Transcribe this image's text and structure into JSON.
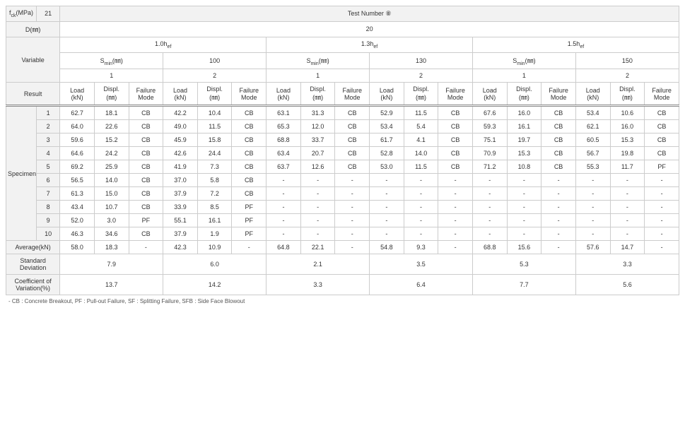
{
  "colors": {
    "header_bg": "#f2f2f2",
    "border": "#cccccc",
    "text": "#333333",
    "background": "#ffffff"
  },
  "typography": {
    "base_fontsize_pt": 9,
    "footnote_fontsize_pt": 8,
    "sub_fontsize_pt": 7
  },
  "hdr": {
    "fck_label": "f",
    "fck_sub": "ck",
    "fck_unit": "(MPa)",
    "fck_val": "21",
    "test_number": "Test Number ⑧",
    "d_label": "D(㎜)",
    "d_val": "20",
    "variable": "Variable",
    "hef_10": "1.0h",
    "hef_13": "1.3h",
    "hef_15": "1.5h",
    "hef_sub": "ef",
    "smin": "S",
    "smin_sub": "min",
    "smin_unit": "(㎜)",
    "c100": "100",
    "c130": "130",
    "c150": "150",
    "one": "1",
    "two": "2",
    "result": "Result",
    "load": "Load",
    "load_unit": "(kN)",
    "displ": "Displ.",
    "displ_unit": "(㎜)",
    "failure": "Failure",
    "failure2": "Mode",
    "specimen": "Specimen",
    "average": "Average(kN)",
    "stddev": "Standard",
    "stddev2": "Deviation",
    "cov": "Coefficient of",
    "cov2": "Variation(%)"
  },
  "rows": [
    {
      "n": "1",
      "c": [
        "62.7",
        "18.1",
        "CB",
        "42.2",
        "10.4",
        "CB",
        "63.1",
        "31.3",
        "CB",
        "52.9",
        "11.5",
        "CB",
        "67.6",
        "16.0",
        "CB",
        "53.4",
        "10.6",
        "CB"
      ]
    },
    {
      "n": "2",
      "c": [
        "64.0",
        "22.6",
        "CB",
        "49.0",
        "11.5",
        "CB",
        "65.3",
        "12.0",
        "CB",
        "53.4",
        "5.4",
        "CB",
        "59.3",
        "16.1",
        "CB",
        "62.1",
        "16.0",
        "CB"
      ]
    },
    {
      "n": "3",
      "c": [
        "59.6",
        "15.2",
        "CB",
        "45.9",
        "15.8",
        "CB",
        "68.8",
        "33.7",
        "CB",
        "61.7",
        "4.1",
        "CB",
        "75.1",
        "19.7",
        "CB",
        "60.5",
        "15.3",
        "CB"
      ]
    },
    {
      "n": "4",
      "c": [
        "64.6",
        "24.2",
        "CB",
        "42.6",
        "24.4",
        "CB",
        "63.4",
        "20.7",
        "CB",
        "52.8",
        "14.0",
        "CB",
        "70.9",
        "15.3",
        "CB",
        "56.7",
        "19.8",
        "CB"
      ]
    },
    {
      "n": "5",
      "c": [
        "69.2",
        "25.9",
        "CB",
        "41.9",
        "7.3",
        "CB",
        "63.7",
        "12.6",
        "CB",
        "53.0",
        "11.5",
        "CB",
        "71.2",
        "10.8",
        "CB",
        "55.3",
        "11.7",
        "PF"
      ]
    },
    {
      "n": "6",
      "c": [
        "56.5",
        "14.0",
        "CB",
        "37.0",
        "5.8",
        "CB",
        "-",
        "-",
        "-",
        "-",
        "-",
        "-",
        "-",
        "-",
        "-",
        "-",
        "-",
        "-"
      ]
    },
    {
      "n": "7",
      "c": [
        "61.3",
        "15.0",
        "CB",
        "37.9",
        "7.2",
        "CB",
        "-",
        "-",
        "-",
        "-",
        "-",
        "-",
        "-",
        "-",
        "-",
        "-",
        "-",
        "-"
      ]
    },
    {
      "n": "8",
      "c": [
        "43.4",
        "10.7",
        "CB",
        "33.9",
        "8.5",
        "PF",
        "-",
        "-",
        "-",
        "-",
        "-",
        "-",
        "-",
        "-",
        "-",
        "-",
        "-",
        "-"
      ]
    },
    {
      "n": "9",
      "c": [
        "52.0",
        "3.0",
        "PF",
        "55.1",
        "16.1",
        "PF",
        "-",
        "-",
        "-",
        "-",
        "-",
        "-",
        "-",
        "-",
        "-",
        "-",
        "-",
        "-"
      ]
    },
    {
      "n": "10",
      "c": [
        "46.3",
        "34.6",
        "CB",
        "37.9",
        "1.9",
        "PF",
        "-",
        "-",
        "-",
        "-",
        "-",
        "-",
        "-",
        "-",
        "-",
        "-",
        "-",
        "-"
      ]
    }
  ],
  "avg": [
    "58.0",
    "18.3",
    "-",
    "42.3",
    "10.9",
    "-",
    "64.8",
    "22.1",
    "-",
    "54.8",
    "9.3",
    "-",
    "68.8",
    "15.6",
    "-",
    "57.6",
    "14.7",
    "-"
  ],
  "stddev": [
    "7.9",
    "6.0",
    "2.1",
    "3.5",
    "5.3",
    "3.3"
  ],
  "cov": [
    "13.7",
    "14.2",
    "3.3",
    "6.4",
    "7.7",
    "5.6"
  ],
  "footnote": "- CB : Concrete Breakout, PF : Pull-out Failure, SF : Splitting Failure, SFB : Side Face Blowout"
}
